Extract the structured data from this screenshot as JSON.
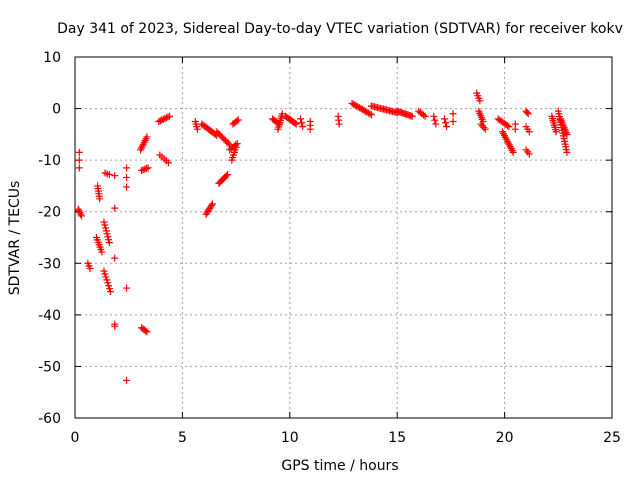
{
  "chart_data": {
    "type": "scatter",
    "title": "Day 341 of 2023, Sidereal Day-to-day VTEC variation (SDTVAR) for receiver kokv",
    "xlabel": "GPS time / hours",
    "ylabel": "SDTVAR / TECUs",
    "xlim": [
      0,
      25
    ],
    "ylim": [
      -60,
      10
    ],
    "xticks": [
      0,
      5,
      10,
      15,
      20,
      25
    ],
    "yticks": [
      10,
      0,
      -10,
      -20,
      -30,
      -40,
      -50,
      -60
    ],
    "xtick_labels": [
      "0",
      "5",
      "10",
      "15",
      "20",
      "25"
    ],
    "ytick_labels": [
      "10",
      "0",
      "-10",
      "-20",
      "-30",
      "-40",
      "-50",
      "-60"
    ],
    "grid": true,
    "marker": "plus",
    "color": "#ff0000",
    "segments": [
      {
        "x0": 0.2,
        "y0": -8.5,
        "x1": 0.2,
        "y1": -11.5,
        "n": 3
      },
      {
        "x0": 0.15,
        "y0": -19.5,
        "x1": 0.3,
        "y1": -20.8,
        "n": 5
      },
      {
        "x0": 0.6,
        "y0": -30.0,
        "x1": 0.7,
        "y1": -31.0,
        "n": 3
      },
      {
        "x0": 1.05,
        "y0": -15.0,
        "x1": 1.15,
        "y1": -17.5,
        "n": 6
      },
      {
        "x0": 1.0,
        "y0": -25.0,
        "x1": 1.25,
        "y1": -27.8,
        "n": 7
      },
      {
        "x0": 1.35,
        "y0": -22.0,
        "x1": 1.6,
        "y1": -26.0,
        "n": 8
      },
      {
        "x0": 1.35,
        "y0": -31.5,
        "x1": 1.65,
        "y1": -35.5,
        "n": 8
      },
      {
        "x0": 1.4,
        "y0": -12.5,
        "x1": 1.6,
        "y1": -12.8,
        "n": 3
      },
      {
        "x0": 1.85,
        "y0": -13.0,
        "x1": 1.85,
        "y1": -13.0,
        "n": 1
      },
      {
        "x0": 1.85,
        "y0": -19.3,
        "x1": 1.85,
        "y1": -19.3,
        "n": 1
      },
      {
        "x0": 1.85,
        "y0": -29.0,
        "x1": 1.85,
        "y1": -29.0,
        "n": 1
      },
      {
        "x0": 1.85,
        "y0": -41.8,
        "x1": 1.85,
        "y1": -42.2,
        "n": 2
      },
      {
        "x0": 2.4,
        "y0": -11.5,
        "x1": 2.4,
        "y1": -15.2,
        "n": 3
      },
      {
        "x0": 2.4,
        "y0": -34.8,
        "x1": 2.4,
        "y1": -34.8,
        "n": 1
      },
      {
        "x0": 2.4,
        "y0": -52.7,
        "x1": 2.4,
        "y1": -52.7,
        "n": 1
      },
      {
        "x0": 3.1,
        "y0": -42.5,
        "x1": 3.35,
        "y1": -43.3,
        "n": 5
      },
      {
        "x0": 3.05,
        "y0": -8.0,
        "x1": 3.35,
        "y1": -5.5,
        "n": 8
      },
      {
        "x0": 3.1,
        "y0": -12.0,
        "x1": 3.4,
        "y1": -11.5,
        "n": 5
      },
      {
        "x0": 3.9,
        "y0": -2.5,
        "x1": 4.4,
        "y1": -1.5,
        "n": 8
      },
      {
        "x0": 3.95,
        "y0": -9.0,
        "x1": 4.35,
        "y1": -10.5,
        "n": 5
      },
      {
        "x0": 5.6,
        "y0": -2.5,
        "x1": 5.7,
        "y1": -4.0,
        "n": 4
      },
      {
        "x0": 5.9,
        "y0": -3.0,
        "x1": 6.6,
        "y1": -5.2,
        "n": 12
      },
      {
        "x0": 6.1,
        "y0": -20.5,
        "x1": 6.4,
        "y1": -18.5,
        "n": 8
      },
      {
        "x0": 6.6,
        "y0": -4.5,
        "x1": 7.2,
        "y1": -7.0,
        "n": 10
      },
      {
        "x0": 6.7,
        "y0": -14.5,
        "x1": 7.1,
        "y1": -12.8,
        "n": 8
      },
      {
        "x0": 7.2,
        "y0": -8.0,
        "x1": 7.55,
        "y1": -6.8,
        "n": 6
      },
      {
        "x0": 7.3,
        "y0": -10.0,
        "x1": 7.5,
        "y1": -7.5,
        "n": 6
      },
      {
        "x0": 7.35,
        "y0": -3.0,
        "x1": 7.6,
        "y1": -2.2,
        "n": 5
      },
      {
        "x0": 9.2,
        "y0": -2.0,
        "x1": 9.5,
        "y1": -3.0,
        "n": 6
      },
      {
        "x0": 9.45,
        "y0": -4.0,
        "x1": 9.65,
        "y1": -1.0,
        "n": 8
      },
      {
        "x0": 9.8,
        "y0": -1.5,
        "x1": 10.3,
        "y1": -3.0,
        "n": 10
      },
      {
        "x0": 10.5,
        "y0": -2.0,
        "x1": 10.6,
        "y1": -3.5,
        "n": 3
      },
      {
        "x0": 10.95,
        "y0": -2.5,
        "x1": 10.95,
        "y1": -4.0,
        "n": 3
      },
      {
        "x0": 12.25,
        "y0": -1.5,
        "x1": 12.3,
        "y1": -3.0,
        "n": 3
      },
      {
        "x0": 12.9,
        "y0": 1.0,
        "x1": 13.8,
        "y1": -1.2,
        "n": 14
      },
      {
        "x0": 13.8,
        "y0": 0.5,
        "x1": 15.0,
        "y1": -0.8,
        "n": 18
      },
      {
        "x0": 15.0,
        "y0": -0.5,
        "x1": 15.7,
        "y1": -1.5,
        "n": 12
      },
      {
        "x0": 16.0,
        "y0": -0.5,
        "x1": 16.3,
        "y1": -1.5,
        "n": 5
      },
      {
        "x0": 16.7,
        "y0": -1.5,
        "x1": 16.8,
        "y1": -3.0,
        "n": 3
      },
      {
        "x0": 17.2,
        "y0": -2.0,
        "x1": 17.3,
        "y1": -3.5,
        "n": 3
      },
      {
        "x0": 17.6,
        "y0": -1.0,
        "x1": 17.6,
        "y1": -2.5,
        "n": 2
      },
      {
        "x0": 18.7,
        "y0": 3.0,
        "x1": 18.85,
        "y1": 1.5,
        "n": 4
      },
      {
        "x0": 18.8,
        "y0": -0.5,
        "x1": 19.0,
        "y1": -2.5,
        "n": 6
      },
      {
        "x0": 18.9,
        "y0": -3.0,
        "x1": 19.1,
        "y1": -4.0,
        "n": 4
      },
      {
        "x0": 19.7,
        "y0": -2.0,
        "x1": 20.2,
        "y1": -3.5,
        "n": 8
      },
      {
        "x0": 19.9,
        "y0": -4.5,
        "x1": 20.4,
        "y1": -8.5,
        "n": 12
      },
      {
        "x0": 20.5,
        "y0": -3.0,
        "x1": 20.5,
        "y1": -4.0,
        "n": 2
      },
      {
        "x0": 21.0,
        "y0": -0.5,
        "x1": 21.1,
        "y1": -1.0,
        "n": 3
      },
      {
        "x0": 21.0,
        "y0": -3.5,
        "x1": 21.15,
        "y1": -4.5,
        "n": 3
      },
      {
        "x0": 21.0,
        "y0": -8.0,
        "x1": 21.15,
        "y1": -8.8,
        "n": 3
      },
      {
        "x0": 22.2,
        "y0": -1.5,
        "x1": 22.4,
        "y1": -4.5,
        "n": 8
      },
      {
        "x0": 22.5,
        "y0": -0.5,
        "x1": 22.9,
        "y1": -8.5,
        "n": 16
      },
      {
        "x0": 22.6,
        "y0": -2.0,
        "x1": 22.9,
        "y1": -5.0,
        "n": 10
      }
    ]
  }
}
